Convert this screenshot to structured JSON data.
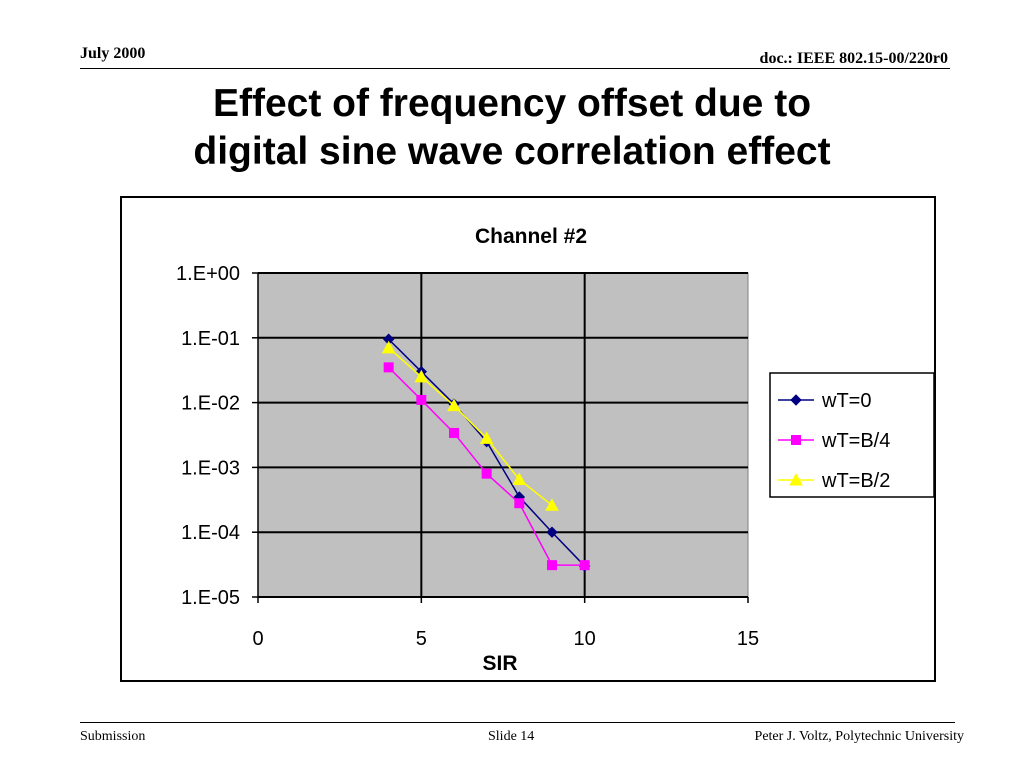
{
  "header": {
    "date": "July 2000",
    "doc": "doc.: IEEE 802.15-00/220r0"
  },
  "slide_title": {
    "line1": "Effect of frequency offset due to",
    "line2": "digital sine wave correlation effect"
  },
  "footer": {
    "left": "Submission",
    "center": "Slide 14",
    "right": "Peter J. Voltz, Polytechnic University"
  },
  "chart_data": {
    "type": "line",
    "title": "Channel #2",
    "xlabel": "SIR",
    "ylabel": "",
    "xlim": [
      0,
      15
    ],
    "xticks": [
      0,
      5,
      10,
      15
    ],
    "x_tick_labels": [
      "0",
      "5",
      "10",
      "15"
    ],
    "y_scale": "log",
    "ylim": [
      1e-05,
      1
    ],
    "yticks": [
      1,
      0.1,
      0.01,
      0.001,
      0.0001,
      1e-05
    ],
    "y_tick_labels": [
      "1.E+00",
      "1.E-01",
      "1.E-02",
      "1.E-03",
      "1.E-04",
      "1.E-05"
    ],
    "grid": true,
    "plot_background": "#c0c0c0",
    "legend_position": "right",
    "series": [
      {
        "name": "wT=0",
        "color": "#000080",
        "marker": "diamond",
        "points": [
          [
            4,
            0.095
          ],
          [
            5,
            0.03
          ],
          [
            6,
            0.0095
          ],
          [
            7,
            0.0025
          ],
          [
            8,
            0.00035
          ],
          [
            9,
            0.0001
          ],
          [
            10,
            3e-05
          ]
        ]
      },
      {
        "name": "wT=B/4",
        "color": "#ff00ff",
        "marker": "square",
        "points": [
          [
            4,
            0.035
          ],
          [
            5,
            0.011
          ],
          [
            6,
            0.0034
          ],
          [
            7,
            0.0008
          ],
          [
            8,
            0.00028
          ],
          [
            9,
            3.1e-05
          ],
          [
            10,
            3.1e-05
          ]
        ]
      },
      {
        "name": "wT=B/2",
        "color": "#ffff00",
        "marker": "triangle",
        "points": [
          [
            4,
            0.07
          ],
          [
            5,
            0.025
          ],
          [
            6,
            0.009
          ],
          [
            7,
            0.0028
          ],
          [
            8,
            0.00065
          ],
          [
            9,
            0.00026
          ]
        ]
      }
    ]
  }
}
